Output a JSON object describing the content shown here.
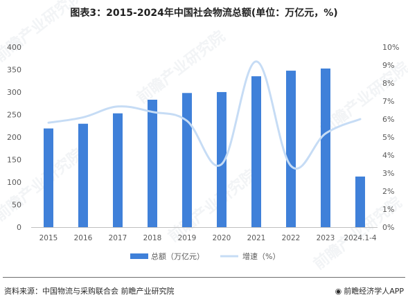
{
  "title": "图表3：2015-2024年中国社会物流总额(单位：万亿元，%)",
  "source": "资料来源：中国物流与采购联合会 前瞻产业研究院",
  "brand": "前瞻经济学人APP",
  "watermark": "前瞻产业研究院",
  "colors": {
    "bar": "#3f80d9",
    "line": "#c6dcf5",
    "axis": "#bfbfbf",
    "text": "#595959"
  },
  "chart_data": {
    "type": "bar",
    "categories": [
      "2015",
      "2016",
      "2017",
      "2018",
      "2019",
      "2020",
      "2021",
      "2022",
      "2023",
      "2024.1-4"
    ],
    "series": [
      {
        "name": "总额（万亿元）",
        "type": "bar",
        "axis": "left",
        "values": [
          219.2,
          229.7,
          252.8,
          283.1,
          298.0,
          300.1,
          335.2,
          347.6,
          352.4,
          112.4
        ]
      },
      {
        "name": "增速（%）",
        "type": "line",
        "axis": "right",
        "values": [
          5.8,
          6.1,
          6.7,
          6.4,
          5.9,
          3.5,
          9.2,
          3.4,
          5.2,
          6.0
        ]
      }
    ],
    "ylim_left": [
      0,
      400
    ],
    "yticks_left": [
      "0",
      "50",
      "100",
      "150",
      "200",
      "250",
      "300",
      "350",
      "400"
    ],
    "ylim_right": [
      0,
      10
    ],
    "yticks_right": [
      "0%",
      "1%",
      "2%",
      "3%",
      "4%",
      "5%",
      "6%",
      "7%",
      "8%",
      "9%",
      "10%"
    ],
    "legend_position": "bottom",
    "grid": false
  }
}
